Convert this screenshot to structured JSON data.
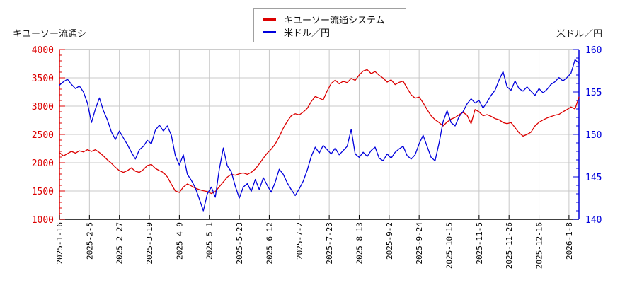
{
  "titles": {
    "left_axis_title": "キユーソー流通シ",
    "right_axis_title": "米ドル／円"
  },
  "legend": {
    "items": [
      {
        "label": "キユーソー流通システム",
        "color": "#dc0000"
      },
      {
        "label": "米ドル／円",
        "color": "#0000dc"
      }
    ]
  },
  "chart_data": {
    "type": "line",
    "title": "",
    "grid": true,
    "grid_color": "#c8c8c8",
    "top_border_color": "#999999",
    "bottom_axis_color": "#000000",
    "legend_position": "top-center",
    "x_start": 0,
    "x_step": 2,
    "x_ticks": {
      "labels": [
        "2025-1-16",
        "2025-2-5",
        "2025-2-27",
        "2025-3-19",
        "2025-4-9",
        "2025-5-1",
        "2025-5-23",
        "2025-6-12",
        "2025-7-2",
        "2025-7-23",
        "2025-8-13",
        "2025-9-2",
        "2025-9-24",
        "2025-10-15",
        "2025-11-5",
        "2025-11-26",
        "2025-12-16",
        "2026-1-8"
      ],
      "positions": [
        0,
        15,
        30,
        45,
        60,
        75,
        90,
        105,
        120,
        135,
        150,
        165,
        180,
        195,
        210,
        225,
        240,
        255
      ]
    },
    "left_axis": {
      "title": "キユーソー流通シ",
      "min": 1000,
      "max": 4000,
      "tick_step": 500,
      "minor_step": 100,
      "color": "#dc0000",
      "tick_labels": [
        "1000",
        "1500",
        "2000",
        "2500",
        "3000",
        "3500",
        "4000"
      ]
    },
    "right_axis": {
      "title": "米ドル／円",
      "min": 140,
      "max": 160,
      "tick_step": 5,
      "minor_step": 1,
      "color": "#0000dc",
      "tick_labels": [
        "140",
        "145",
        "150",
        "155",
        "160"
      ]
    },
    "series": [
      {
        "name": "キユーソー流通システム",
        "axis": "left",
        "color": "#dc0000",
        "values": [
          2180,
          2120,
          2160,
          2200,
          2170,
          2210,
          2190,
          2230,
          2200,
          2230,
          2180,
          2120,
          2050,
          1990,
          1920,
          1860,
          1830,
          1860,
          1910,
          1850,
          1830,
          1880,
          1950,
          1970,
          1900,
          1860,
          1830,
          1750,
          1620,
          1500,
          1475,
          1570,
          1625,
          1590,
          1550,
          1525,
          1505,
          1490,
          1455,
          1490,
          1575,
          1660,
          1745,
          1795,
          1780,
          1805,
          1820,
          1795,
          1830,
          1890,
          1980,
          2080,
          2170,
          2240,
          2330,
          2460,
          2610,
          2730,
          2830,
          2865,
          2845,
          2895,
          2960,
          3080,
          3170,
          3140,
          3110,
          3270,
          3400,
          3460,
          3395,
          3440,
          3415,
          3490,
          3455,
          3550,
          3620,
          3645,
          3575,
          3610,
          3545,
          3495,
          3425,
          3465,
          3380,
          3420,
          3440,
          3320,
          3200,
          3140,
          3160,
          3060,
          2940,
          2830,
          2760,
          2710,
          2650,
          2720,
          2770,
          2800,
          2850,
          2890,
          2840,
          2690,
          2940,
          2900,
          2830,
          2850,
          2820,
          2780,
          2760,
          2710,
          2690,
          2710,
          2620,
          2530,
          2470,
          2500,
          2540,
          2650,
          2715,
          2755,
          2790,
          2815,
          2840,
          2855,
          2900,
          2940,
          2985,
          2950,
          3160
        ]
      },
      {
        "name": "米ドル／円",
        "axis": "right",
        "color": "#0000dc",
        "values": [
          155.8,
          156.2,
          156.5,
          155.9,
          155.4,
          155.7,
          155.0,
          153.7,
          151.4,
          153.0,
          154.3,
          152.8,
          151.7,
          150.3,
          149.4,
          150.4,
          149.6,
          148.8,
          147.9,
          147.1,
          148.2,
          148.6,
          149.3,
          148.9,
          150.5,
          151.1,
          150.4,
          151.0,
          149.9,
          147.5,
          146.4,
          147.6,
          145.3,
          144.6,
          143.7,
          142.4,
          141.0,
          143.0,
          143.8,
          142.6,
          145.9,
          148.4,
          146.3,
          145.6,
          143.9,
          142.5,
          143.8,
          144.2,
          143.3,
          144.7,
          143.5,
          144.9,
          144.0,
          143.2,
          144.4,
          145.9,
          145.3,
          144.3,
          143.5,
          142.8,
          143.6,
          144.5,
          145.8,
          147.4,
          148.5,
          147.8,
          148.7,
          148.2,
          147.7,
          148.4,
          147.6,
          148.1,
          148.6,
          150.6,
          147.7,
          147.3,
          147.9,
          147.4,
          148.1,
          148.5,
          147.2,
          146.9,
          147.7,
          147.2,
          147.9,
          148.3,
          148.6,
          147.5,
          147.1,
          147.6,
          148.9,
          149.9,
          148.6,
          147.3,
          146.9,
          149.0,
          151.5,
          152.8,
          151.4,
          151.0,
          152.1,
          152.7,
          153.6,
          154.2,
          153.7,
          154.0,
          153.1,
          153.8,
          154.6,
          155.2,
          156.4,
          157.4,
          155.6,
          155.2,
          156.3,
          155.4,
          155.1,
          155.6,
          155.1,
          154.6,
          155.4,
          154.9,
          155.3,
          155.9,
          156.2,
          156.7,
          156.3,
          156.7,
          157.2,
          158.8,
          158.4
        ]
      }
    ]
  }
}
